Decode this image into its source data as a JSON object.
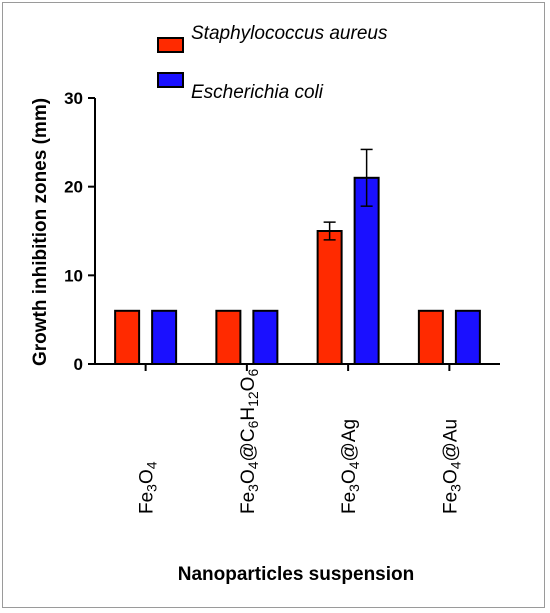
{
  "chart_data": {
    "type": "bar",
    "title": "",
    "xlabel": "Nanoparticles suspension",
    "ylabel": "Growth inhibition zones (mm)",
    "ylim": [
      0,
      30
    ],
    "yticks": [
      "0",
      "10",
      "20",
      "30"
    ],
    "categories": [
      {
        "base": "Fe",
        "parts": [
          [
            "Fe",
            0
          ],
          [
            "3",
            1
          ],
          [
            "O",
            0
          ],
          [
            "4",
            1
          ]
        ]
      },
      {
        "base": "Fe3O4@C6H12O6",
        "parts": [
          [
            "Fe",
            0
          ],
          [
            "3",
            1
          ],
          [
            "O",
            0
          ],
          [
            "4",
            1
          ],
          [
            "@C",
            0
          ],
          [
            "6",
            1
          ],
          [
            "H",
            0
          ],
          [
            "12",
            1
          ],
          [
            "O",
            0
          ],
          [
            "6",
            1
          ]
        ]
      },
      {
        "base": "Fe3O4@Ag",
        "parts": [
          [
            "Fe",
            0
          ],
          [
            "3",
            1
          ],
          [
            "O",
            0
          ],
          [
            "4",
            1
          ],
          [
            "@Ag",
            0
          ]
        ]
      },
      {
        "base": "Fe3O4@Au",
        "parts": [
          [
            "Fe",
            0
          ],
          [
            "3",
            1
          ],
          [
            "O",
            0
          ],
          [
            "4",
            1
          ],
          [
            "@Au",
            0
          ]
        ]
      }
    ],
    "series": [
      {
        "name": "Staphylococcus aureus",
        "color": "#ff2a00",
        "values": [
          6,
          6,
          15,
          6
        ],
        "errors": [
          0,
          0,
          1,
          0
        ]
      },
      {
        "name": "Escherichia coli",
        "color": "#1a10ff",
        "values": [
          6,
          6,
          21,
          6
        ],
        "errors": [
          0,
          0,
          3.2,
          0
        ]
      }
    ],
    "legend_position": "top"
  }
}
